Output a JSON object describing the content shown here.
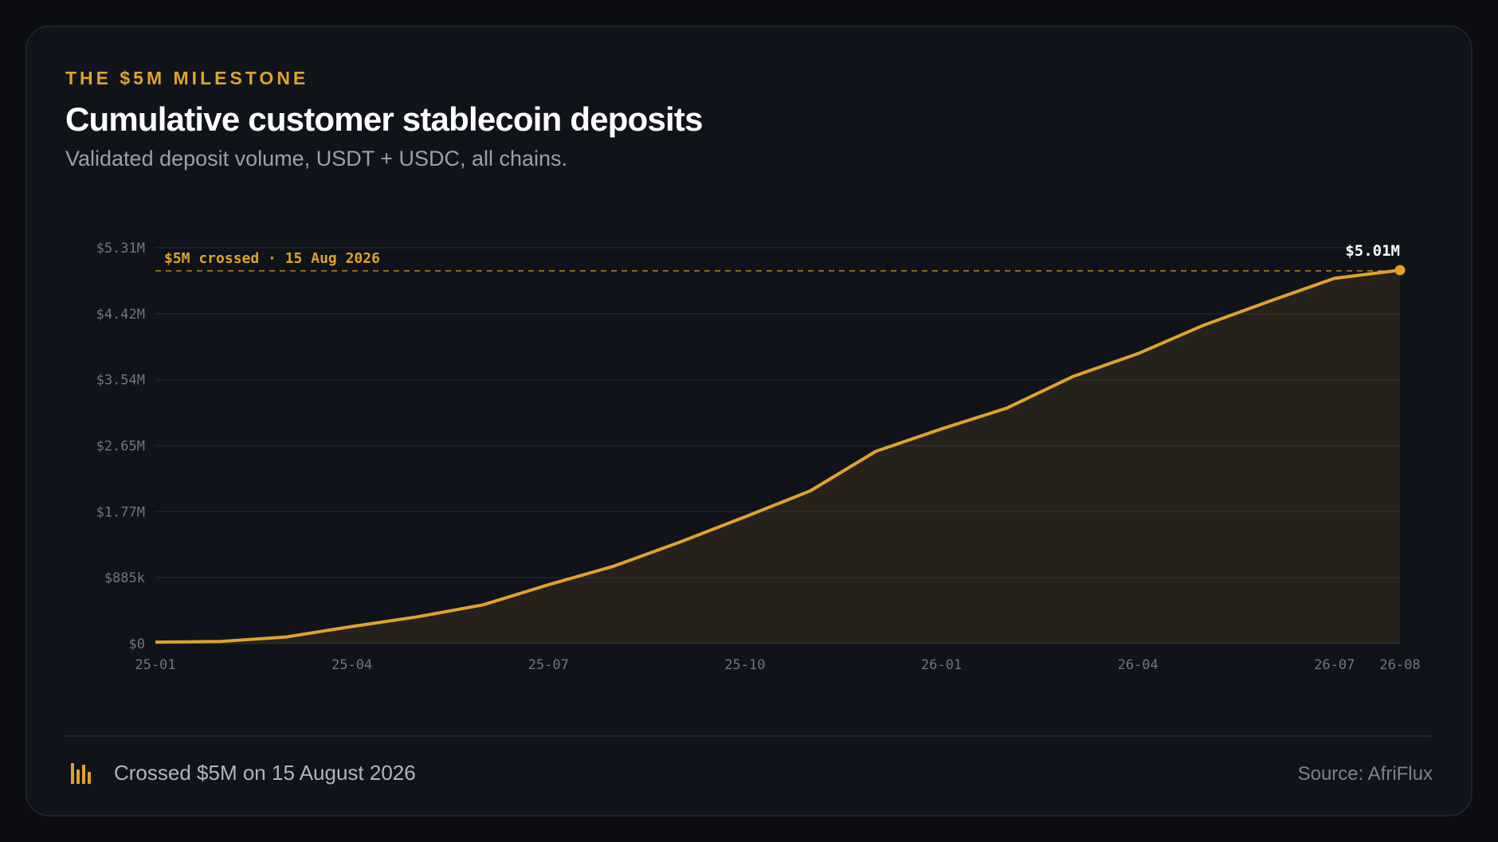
{
  "header": {
    "eyebrow": "THE $5M MILESTONE",
    "title": "Cumulative customer stablecoin deposits",
    "subtitle": "Validated deposit volume, USDT + USDC, all chains."
  },
  "chart_data": {
    "type": "area",
    "categories": [
      "25-01",
      null,
      null,
      "25-04",
      null,
      null,
      "25-07",
      null,
      null,
      "25-10",
      null,
      null,
      "26-01",
      null,
      null,
      "26-04",
      null,
      null,
      "26-07",
      "26-08"
    ],
    "series": [
      {
        "name": "Cumulative deposits",
        "color": "#e0a22b",
        "values": [
          20000,
          30000,
          90000,
          230000,
          360000,
          520000,
          790000,
          1040000,
          1360000,
          1700000,
          2050000,
          2580000,
          2880000,
          3160000,
          3580000,
          3890000,
          4270000,
          4590000,
          4900000,
          5010000
        ],
        "value_labels": [
          null,
          null,
          null,
          null,
          null,
          null,
          null,
          null,
          null,
          null,
          null,
          null,
          null,
          null,
          null,
          null,
          null,
          null,
          null,
          "$5.01M"
        ]
      }
    ],
    "ylim": [
      0,
      5310000
    ],
    "yticks": [
      {
        "value": 0,
        "label": "$0"
      },
      {
        "value": 885000,
        "label": "$885k"
      },
      {
        "value": 1770000,
        "label": "$1.77M"
      },
      {
        "value": 2655000,
        "label": "$2.65M"
      },
      {
        "value": 3540000,
        "label": "$3.54M"
      },
      {
        "value": 4425000,
        "label": "$4.42M"
      },
      {
        "value": 5310000,
        "label": "$5.31M"
      }
    ],
    "grid": true,
    "threshold": {
      "value": 5000000,
      "label": "$5M crossed · 15 Aug 2026"
    }
  },
  "footer": {
    "note": "Crossed $5M on 15 August 2026",
    "source": "Source: AfriFlux"
  }
}
